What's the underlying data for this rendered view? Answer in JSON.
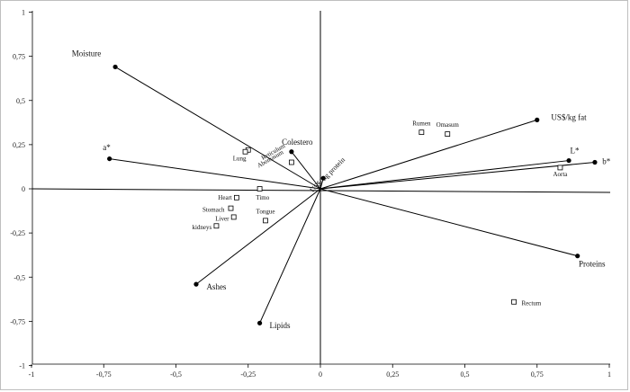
{
  "chart_data": {
    "type": "scatter",
    "title": "",
    "xlabel": "",
    "ylabel": "",
    "xlim": [
      -1,
      1
    ],
    "ylim": [
      -1,
      1
    ],
    "grid": false,
    "legend": "none",
    "x_ticks": [
      "-1",
      "-0,75",
      "-0,5",
      "-0,25",
      "0",
      "0,25",
      "0,5",
      "0,75",
      "1"
    ],
    "x_tick_values": [
      -1,
      -0.75,
      -0.5,
      -0.25,
      0,
      0.25,
      0.5,
      0.75,
      1
    ],
    "y_ticks": [
      "1",
      "0,75",
      "0,5",
      "0,25",
      "0",
      "-0,25",
      "-0,5",
      "-0,75",
      "-1"
    ],
    "y_tick_values": [
      1,
      0.75,
      0.5,
      0.25,
      0,
      -0.25,
      -0.5,
      -0.75,
      -1
    ],
    "vectors": [
      {
        "label": "Moisture",
        "x": -0.71,
        "y": 0.69,
        "lx": -0.81,
        "ly": 0.75,
        "size": 9
      },
      {
        "label": "a*",
        "x": -0.73,
        "y": 0.17,
        "lx": -0.74,
        "ly": 0.22,
        "size": 9
      },
      {
        "label": "Colestero",
        "x": -0.1,
        "y": 0.21,
        "lx": -0.08,
        "ly": 0.25,
        "size": 9
      },
      {
        "label": "US$/ kg protein",
        "x": 0.01,
        "y": 0.06,
        "lx": 0.03,
        "ly": 0.07,
        "size": 8,
        "rotate": -45
      },
      {
        "label": "US$/kg fat",
        "x": 0.75,
        "y": 0.39,
        "lx": 0.86,
        "ly": 0.39,
        "size": 9
      },
      {
        "label": "L*",
        "x": 0.86,
        "y": 0.16,
        "lx": 0.88,
        "ly": 0.2,
        "size": 9
      },
      {
        "label": "b*",
        "x": 0.95,
        "y": 0.15,
        "lx": 0.99,
        "ly": 0.14,
        "size": 9
      },
      {
        "label": "Proteins",
        "x": 0.89,
        "y": -0.38,
        "lx": 0.94,
        "ly": -0.44,
        "size": 9
      },
      {
        "label": "Lipids",
        "x": -0.21,
        "y": -0.76,
        "lx": -0.14,
        "ly": -0.79,
        "size": 9
      },
      {
        "label": "Ashes",
        "x": -0.43,
        "y": -0.54,
        "lx": -0.36,
        "ly": -0.57,
        "size": 9
      }
    ],
    "points": [
      {
        "label": "Rumen",
        "x": 0.35,
        "y": 0.32,
        "lx": 0.35,
        "ly": 0.36,
        "size": 7
      },
      {
        "label": "Omasum",
        "x": 0.44,
        "y": 0.31,
        "lx": 0.44,
        "ly": 0.35,
        "size": 7
      },
      {
        "label": "Reticulum",
        "x": -0.1,
        "y": 0.15,
        "lx": -0.16,
        "ly": 0.2,
        "size": 7,
        "rotate": -30
      },
      {
        "label": "Abomasum",
        "x": -0.25,
        "y": 0.22,
        "lx": -0.17,
        "ly": 0.16,
        "size": 7,
        "rotate": -30
      },
      {
        "label": "Lung",
        "x": -0.26,
        "y": 0.21,
        "lx": -0.28,
        "ly": 0.16,
        "size": 7
      },
      {
        "label": "Timo",
        "x": -0.21,
        "y": 0.0,
        "lx": -0.2,
        "ly": -0.06,
        "size": 7
      },
      {
        "label": "Heart",
        "x": -0.29,
        "y": -0.05,
        "lx": -0.33,
        "ly": -0.06,
        "size": 7
      },
      {
        "label": "Stomach",
        "x": -0.31,
        "y": -0.11,
        "lx": -0.37,
        "ly": -0.13,
        "size": 7
      },
      {
        "label": "Tongue",
        "x": -0.19,
        "y": -0.18,
        "lx": -0.19,
        "ly": -0.14,
        "size": 7
      },
      {
        "label": "Liver",
        "x": -0.3,
        "y": -0.16,
        "lx": -0.34,
        "ly": -0.18,
        "size": 7
      },
      {
        "label": "kidneys",
        "x": -0.36,
        "y": -0.21,
        "lx": -0.41,
        "ly": -0.23,
        "size": 7
      },
      {
        "label": "Aorta",
        "x": 0.83,
        "y": 0.12,
        "lx": 0.83,
        "ly": 0.07,
        "size": 7
      },
      {
        "label": "Rectum",
        "x": 0.67,
        "y": -0.64,
        "lx": 0.73,
        "ly": -0.66,
        "size": 7
      }
    ]
  }
}
